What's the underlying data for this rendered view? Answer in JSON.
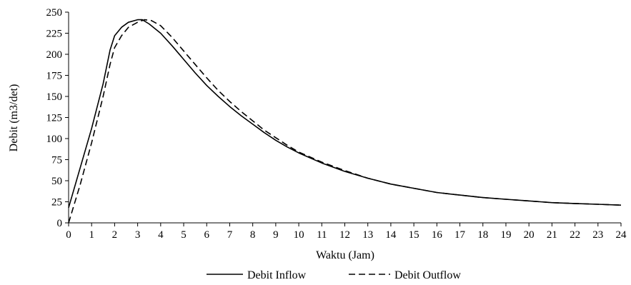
{
  "chart_data": {
    "type": "line",
    "xlabel": "Waktu (Jam)",
    "ylabel": "Debit (m3/det)",
    "xlim": [
      0,
      24
    ],
    "ylim": [
      0,
      250
    ],
    "x_ticks": [
      0,
      1,
      2,
      3,
      4,
      5,
      6,
      7,
      8,
      9,
      10,
      11,
      12,
      13,
      14,
      15,
      16,
      17,
      18,
      19,
      20,
      21,
      22,
      23,
      24
    ],
    "y_ticks": [
      0,
      25,
      50,
      75,
      100,
      125,
      150,
      175,
      200,
      225,
      250
    ],
    "grid": false,
    "legend_position": "bottom",
    "series": [
      {
        "name": "Debit Inflow",
        "line_style": "solid",
        "color": "#000000",
        "points": [
          [
            0,
            18
          ],
          [
            0.5,
            65
          ],
          [
            1,
            112
          ],
          [
            1.5,
            165
          ],
          [
            1.8,
            205
          ],
          [
            2,
            222
          ],
          [
            2.3,
            232
          ],
          [
            2.6,
            238
          ],
          [
            3,
            241
          ],
          [
            3.2,
            241
          ],
          [
            3.5,
            236
          ],
          [
            4,
            225
          ],
          [
            4.5,
            210
          ],
          [
            5,
            194
          ],
          [
            5.5,
            178
          ],
          [
            6,
            163
          ],
          [
            6.5,
            150
          ],
          [
            7,
            138
          ],
          [
            7.5,
            127
          ],
          [
            8,
            117
          ],
          [
            8.5,
            107
          ],
          [
            9,
            98
          ],
          [
            9.5,
            90
          ],
          [
            10,
            83
          ],
          [
            11,
            71
          ],
          [
            12,
            61
          ],
          [
            13,
            53
          ],
          [
            14,
            46
          ],
          [
            15,
            41
          ],
          [
            16,
            36
          ],
          [
            17,
            33
          ],
          [
            18,
            30
          ],
          [
            19,
            28
          ],
          [
            20,
            26
          ],
          [
            21,
            24
          ],
          [
            22,
            23
          ],
          [
            23,
            22
          ],
          [
            24,
            21
          ]
        ]
      },
      {
        "name": "Debit Outflow",
        "line_style": "dashed",
        "color": "#000000",
        "points": [
          [
            0,
            0
          ],
          [
            0.5,
            45
          ],
          [
            1,
            95
          ],
          [
            1.5,
            150
          ],
          [
            1.8,
            188
          ],
          [
            2,
            208
          ],
          [
            2.3,
            222
          ],
          [
            2.6,
            232
          ],
          [
            3,
            238
          ],
          [
            3.3,
            241
          ],
          [
            3.6,
            240
          ],
          [
            4,
            234
          ],
          [
            4.5,
            220
          ],
          [
            5,
            204
          ],
          [
            5.5,
            188
          ],
          [
            6,
            172
          ],
          [
            6.5,
            157
          ],
          [
            7,
            144
          ],
          [
            7.5,
            132
          ],
          [
            8,
            121
          ],
          [
            8.5,
            110
          ],
          [
            9,
            101
          ],
          [
            9.5,
            92
          ],
          [
            10,
            84
          ],
          [
            11,
            72
          ],
          [
            12,
            62
          ],
          [
            13,
            53
          ],
          [
            14,
            46
          ],
          [
            15,
            41
          ],
          [
            16,
            36
          ],
          [
            17,
            33
          ],
          [
            18,
            30
          ],
          [
            19,
            28
          ],
          [
            20,
            26
          ],
          [
            21,
            24
          ],
          [
            22,
            23
          ],
          [
            23,
            22
          ],
          [
            24,
            21
          ]
        ]
      }
    ]
  }
}
